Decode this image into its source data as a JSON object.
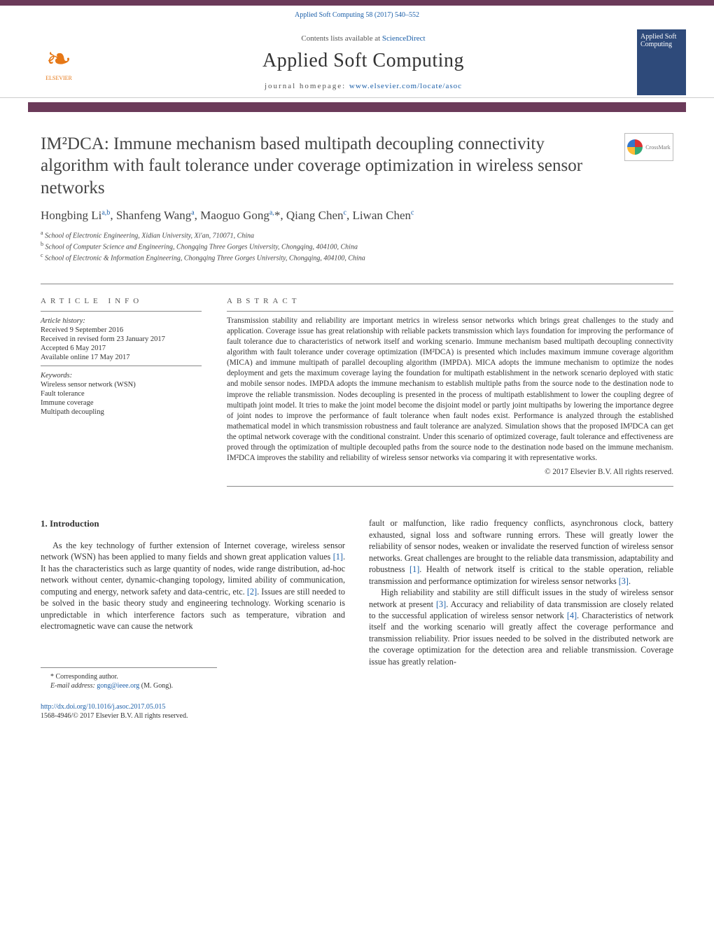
{
  "colors": {
    "accent_bar": "#6b3a59",
    "link": "#1a5ea8",
    "elsevier": "#e67817",
    "cover_bg": "#2e4a7a",
    "text": "#333333"
  },
  "header": {
    "citation": "Applied Soft Computing 58 (2017) 540–552",
    "contents_prefix": "Contents lists available at ",
    "contents_link": "ScienceDirect",
    "journal": "Applied Soft Computing",
    "home_prefix": "journal homepage: ",
    "home_link": "www.elsevier.com/locate/asoc",
    "cover_text": "Applied\nSoft\nComputing",
    "elsevier_label": "ELSEVIER"
  },
  "crossmark": {
    "label": "CrossMark"
  },
  "article": {
    "title": "IM²DCA: Immune mechanism based multipath decoupling connectivity algorithm with fault tolerance under coverage optimization in wireless sensor networks",
    "authors_html": "Hongbing Li<sup>a,b</sup>, Shanfeng Wang<sup>a</sup>, Maoguo Gong<sup>a,</sup><span class='star'>*</span>, Qiang Chen<sup>c</sup>, Liwan Chen<sup>c</sup>",
    "affils": [
      {
        "sup": "a",
        "text": "School of Electronic Engineering, Xidian University, Xi'an, 710071, China"
      },
      {
        "sup": "b",
        "text": "School of Computer Science and Engineering, Chongqing Three Gorges University, Chongqing, 404100, China"
      },
      {
        "sup": "c",
        "text": "School of Electronic & Information Engineering, Chongqing Three Gorges University, Chongqing, 404100, China"
      }
    ]
  },
  "info": {
    "section_label": "article info",
    "history_label": "Article history:",
    "history": [
      "Received 9 September 2016",
      "Received in revised form 23 January 2017",
      "Accepted 6 May 2017",
      "Available online 17 May 2017"
    ],
    "keywords_label": "Keywords:",
    "keywords": [
      "Wireless sensor network (WSN)",
      "Fault tolerance",
      "Immune coverage",
      "Multipath decoupling"
    ]
  },
  "abstract": {
    "section_label": "abstract",
    "text": "Transmission stability and reliability are important metrics in wireless sensor networks which brings great challenges to the study and application. Coverage issue has great relationship with reliable packets transmission which lays foundation for improving the performance of fault tolerance due to characteristics of network itself and working scenario. Immune mechanism based multipath decoupling connectivity algorithm with fault tolerance under coverage optimization (IM²DCA) is presented which includes maximum immune coverage algorithm (MICA) and immune multipath of parallel decoupling algorithm (IMPDA). MICA adopts the immune mechanism to optimize the nodes deployment and gets the maximum coverage laying the foundation for multipath establishment in the network scenario deployed with static and mobile sensor nodes. IMPDA adopts the immune mechanism to establish multiple paths from the source node to the destination node to improve the reliable transmission. Nodes decoupling is presented in the process of multipath establishment to lower the coupling degree of multipath joint model. It tries to make the joint model become the disjoint model or partly joint multipaths by lowering the importance degree of joint nodes to improve the performance of fault tolerance when fault nodes exist. Performance is analyzed through the established mathematical model in which transmission robustness and fault tolerance are analyzed. Simulation shows that the proposed IM²DCA can get the optimal network coverage with the conditional constraint. Under this scenario of optimized coverage, fault tolerance and effectiveness are proved through the optimization of multiple decoupled paths from the source node to the destination node based on the immune mechanism. IM²DCA improves the stability and reliability of wireless sensor networks via comparing it with representative works.",
    "copyright": "© 2017 Elsevier B.V. All rights reserved."
  },
  "body": {
    "section_num": "1.",
    "section_title": "Introduction",
    "col1_p1_a": "As the key technology of further extension of Internet coverage, wireless sensor network (WSN) has been applied to many fields and shown great application values ",
    "ref1": "[1]",
    "col1_p1_b": ". It has the characteristics such as large quantity of nodes, wide range distribution, ad-hoc network without center, dynamic-changing topology, limited ability of communication, computing and energy, network safety and data-centric, etc. ",
    "ref2": "[2]",
    "col1_p1_c": ". Issues are still needed to be solved in the basic theory study and engineering technology. Working scenario is unpredictable in which interference factors such as temperature, vibration and electromagnetic wave can cause the network",
    "col2_p1_a": "fault or malfunction, like radio frequency conflicts, asynchronous clock, battery exhausted, signal loss and software running errors. These will greatly lower the reliability of sensor nodes, weaken or invalidate the reserved function of wireless sensor networks. Great challenges are brought to the reliable data transmission, adaptability and robustness ",
    "ref1b": "[1]",
    "col2_p1_b": ". Health of network itself is critical to the stable operation, reliable transmission and performance optimization for wireless sensor networks ",
    "ref3": "[3]",
    "col2_p1_c": ".",
    "col2_p2_a": "High reliability and stability are still difficult issues in the study of wireless sensor network at present ",
    "ref3b": "[3]",
    "col2_p2_b": ". Accuracy and reliability of data transmission are closely related to the successful application of wireless sensor network ",
    "ref4": "[4]",
    "col2_p2_c": ". Characteristics of network itself and the working scenario will greatly affect the coverage performance and transmission reliability. Prior issues needed to be solved in the distributed network are the coverage optimization for the detection area and reliable transmission. Coverage issue has greatly relation-"
  },
  "corresponding": {
    "label": "* Corresponding author.",
    "email_label": "E-mail address: ",
    "email": "gong@ieee.org",
    "name": " (M. Gong)."
  },
  "footer": {
    "doi": "http://dx.doi.org/10.1016/j.asoc.2017.05.015",
    "issn_line": "1568-4946/© 2017 Elsevier B.V. All rights reserved."
  }
}
